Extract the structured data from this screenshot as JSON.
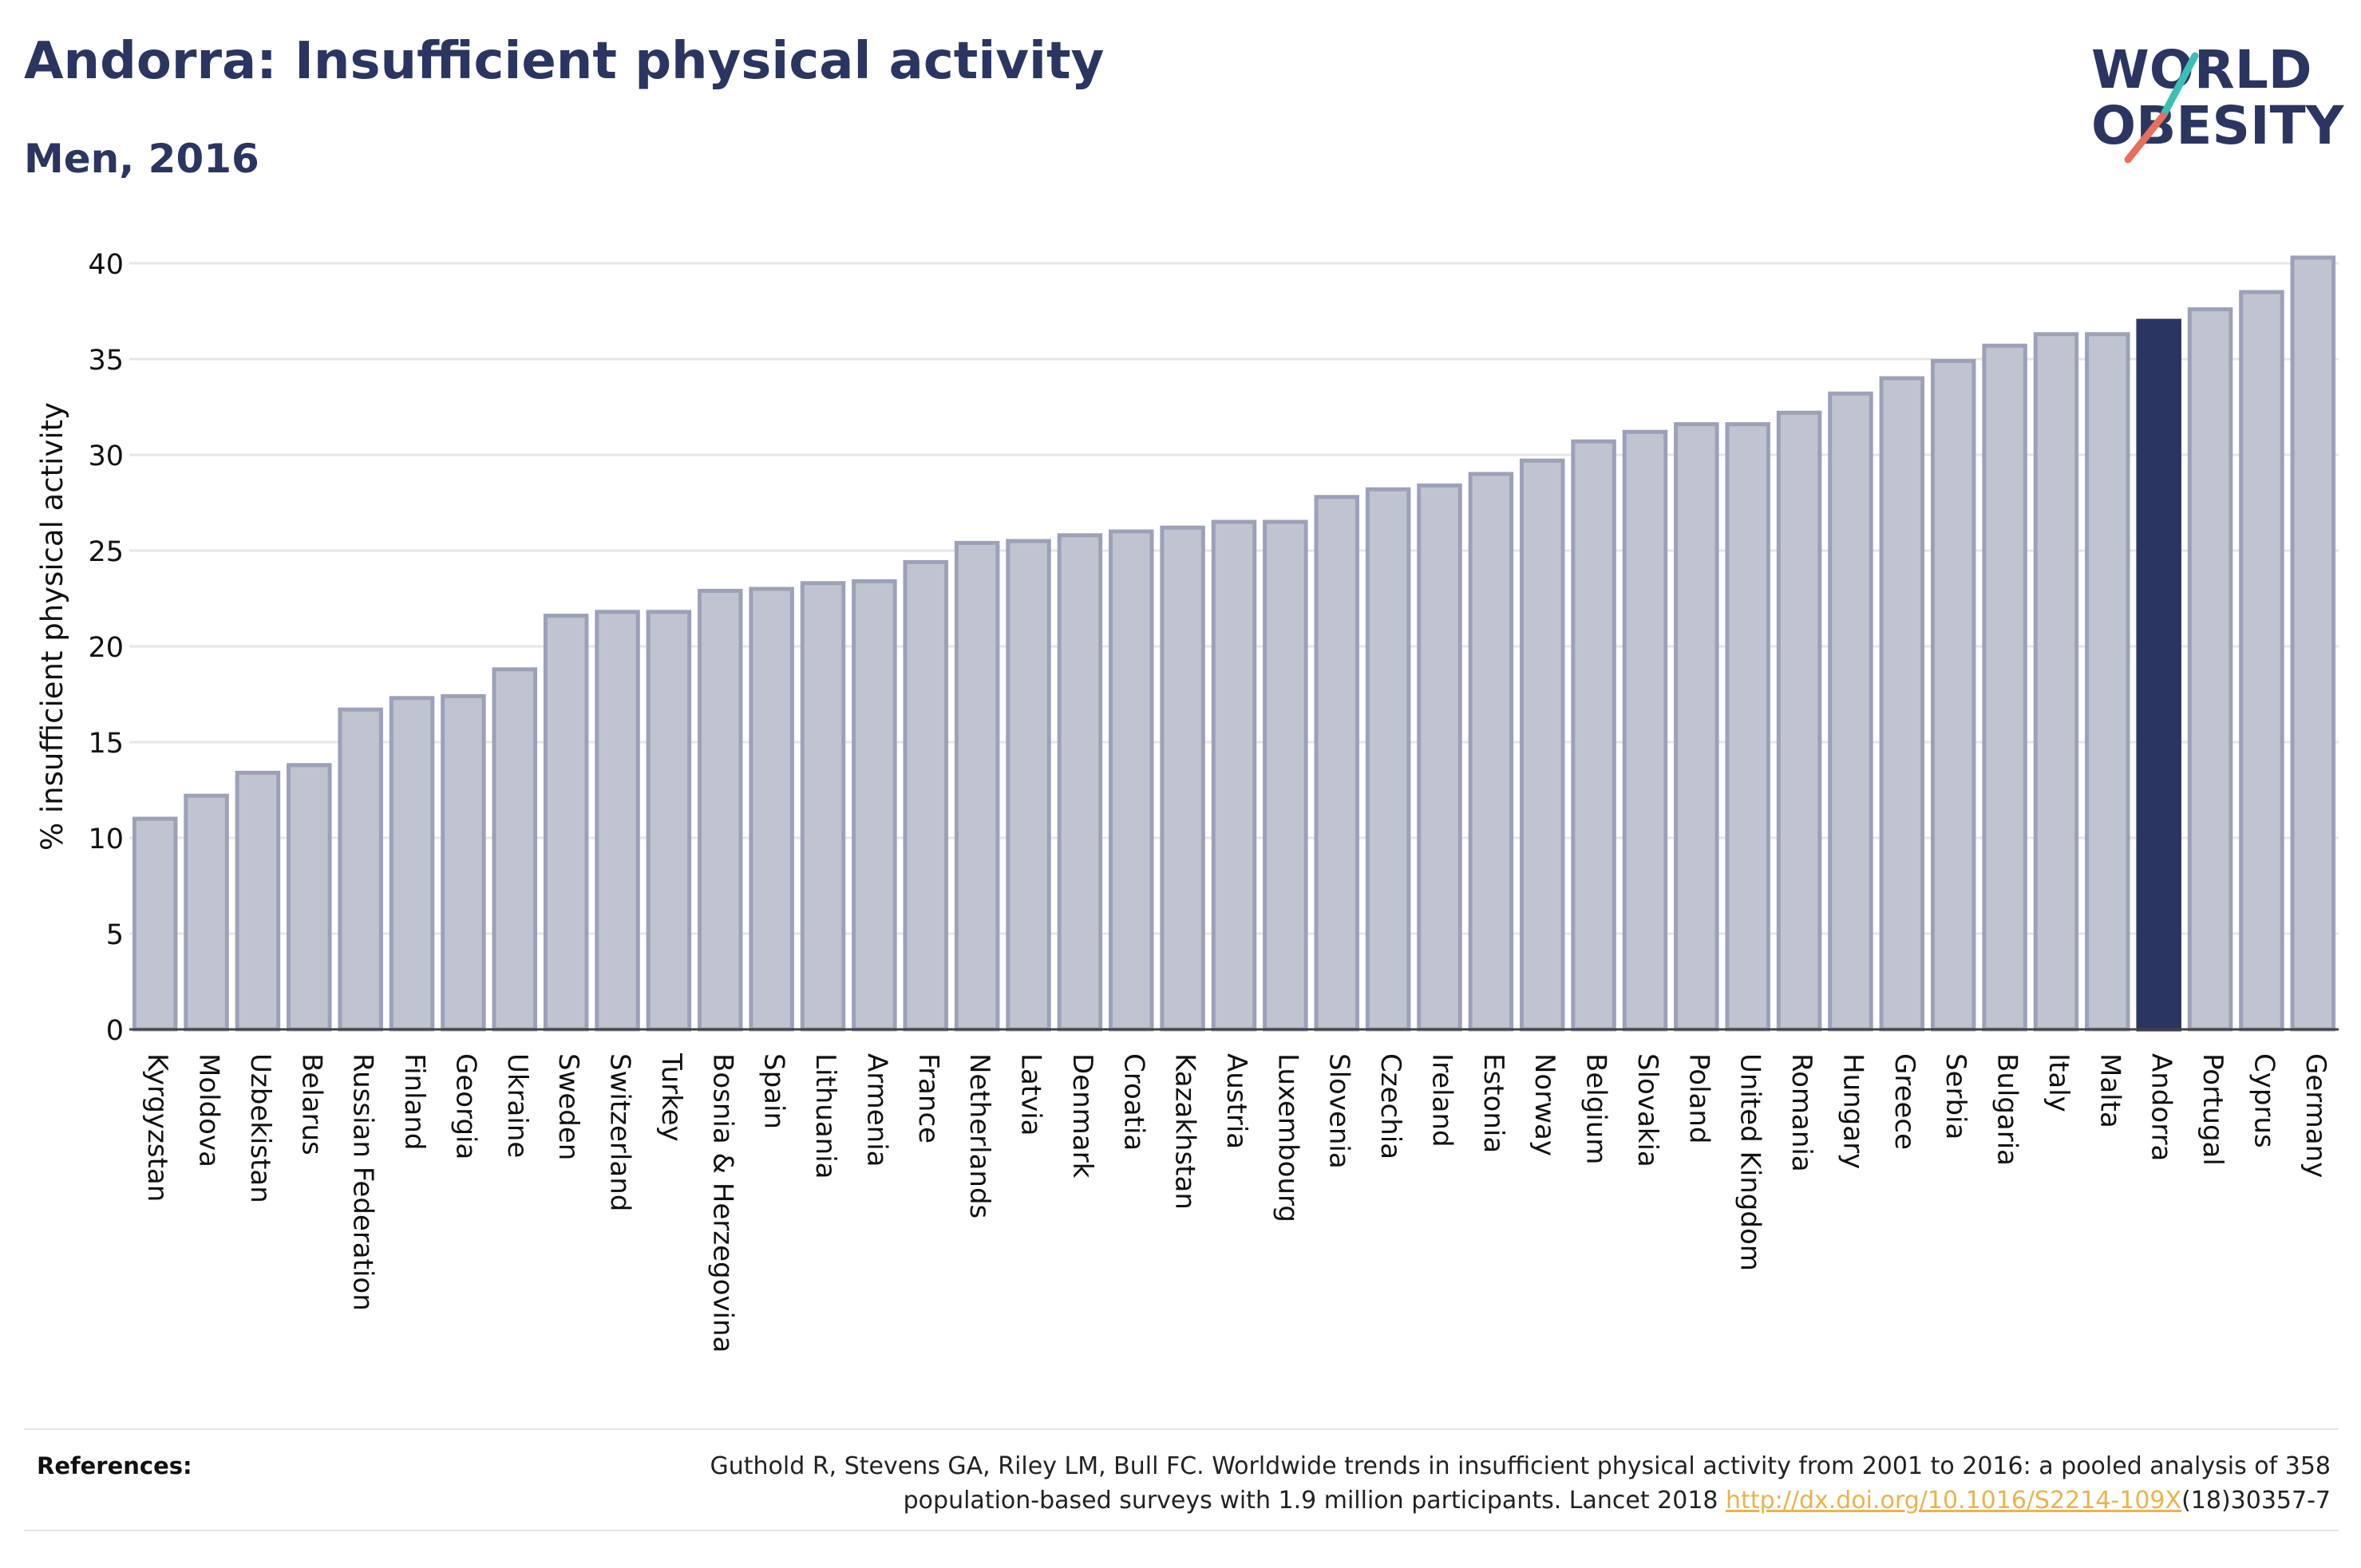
{
  "title": "Andorra: Insufficient physical activity",
  "subtitle": "Men, 2016",
  "logo": {
    "line1": "WORLD",
    "line2": "OBESITY"
  },
  "colors": {
    "bar": "#c0c4d1",
    "bar_stroke": "#9ca1b8",
    "highlight": "#2b3561",
    "grid": "#e6e6e6",
    "logo_slash_top": "#3bbfb4",
    "logo_slash_bottom": "#e8705a"
  },
  "chart_data": {
    "type": "bar",
    "title": "Andorra: Insufficient physical activity",
    "subtitle": "Men, 2016",
    "ylabel": "% insufficient physical activity",
    "xlabel": "",
    "ylim": [
      0,
      40
    ],
    "yticks": [
      0,
      5,
      10,
      15,
      20,
      25,
      30,
      35,
      40
    ],
    "grid": true,
    "highlight": "Andorra",
    "categories": [
      "Kyrgyzstan",
      "Moldova",
      "Uzbekistan",
      "Belarus",
      "Russian Federation",
      "Finland",
      "Georgia",
      "Ukraine",
      "Sweden",
      "Switzerland",
      "Turkey",
      "Bosnia & Herzegovina",
      "Spain",
      "Lithuania",
      "Armenia",
      "France",
      "Netherlands",
      "Latvia",
      "Denmark",
      "Croatia",
      "Kazakhstan",
      "Austria",
      "Luxembourg",
      "Slovenia",
      "Czechia",
      "Ireland",
      "Estonia",
      "Norway",
      "Belgium",
      "Slovakia",
      "Poland",
      "United Kingdom",
      "Romania",
      "Hungary",
      "Greece",
      "Serbia",
      "Bulgaria",
      "Italy",
      "Malta",
      "Andorra",
      "Portugal",
      "Cyprus",
      "Germany"
    ],
    "values": [
      11.0,
      12.2,
      13.4,
      13.8,
      16.7,
      17.3,
      17.4,
      18.8,
      21.6,
      21.8,
      21.8,
      22.9,
      23.0,
      23.3,
      23.4,
      24.4,
      25.4,
      25.5,
      25.8,
      26.0,
      26.2,
      26.5,
      26.5,
      27.8,
      28.2,
      28.4,
      29.0,
      29.7,
      30.7,
      31.2,
      31.6,
      31.6,
      32.2,
      33.2,
      34.0,
      34.9,
      35.7,
      36.3,
      36.3,
      37.0,
      37.6,
      38.5,
      40.3
    ]
  },
  "references": {
    "label": "References:",
    "line1": "Guthold R, Stevens GA, Riley LM, Bull FC. Worldwide trends in insufficient physical activity from 2001 to 2016: a pooled analysis of 358",
    "line2_prefix": "population-based surveys with 1.9 million participants. Lancet 2018 ",
    "link_text": "http://dx.doi.org/10.1016/S2214-109X",
    "line2_suffix": "(18)30357-7"
  }
}
